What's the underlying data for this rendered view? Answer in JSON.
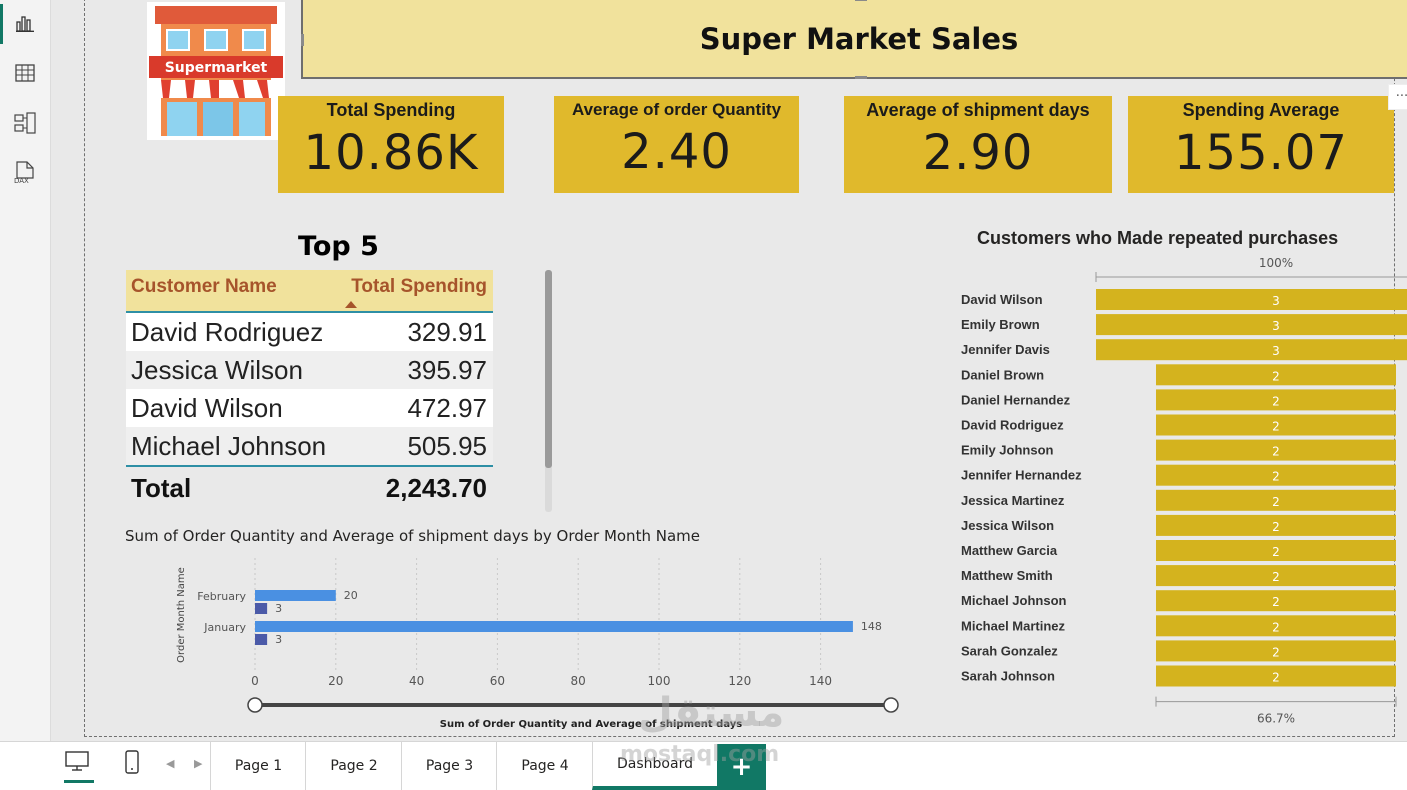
{
  "left_rail": {
    "icons": [
      "report-view-icon",
      "table-view-icon",
      "model-view-icon",
      "dax-query-icon"
    ],
    "dax_label": "DAX"
  },
  "logo": {
    "text": "Supermarket"
  },
  "title": "Super Market Sales",
  "kpis": [
    {
      "label": "Total Spending",
      "value": "10.86K"
    },
    {
      "label": "Average of order Quantity",
      "value": "2.40"
    },
    {
      "label": "Average of shipment days",
      "value": "2.90"
    },
    {
      "label": "Spending Average",
      "value": "155.07"
    }
  ],
  "more_options": "···",
  "top5": {
    "title": "Top 5",
    "headers": {
      "name": "Customer Name",
      "value": "Total Spending"
    },
    "rows": [
      {
        "name": "David Rodriguez",
        "value": "329.91"
      },
      {
        "name": "Jessica Wilson",
        "value": "395.97"
      },
      {
        "name": "David Wilson",
        "value": "472.97"
      },
      {
        "name": "Michael Johnson",
        "value": "505.95"
      }
    ],
    "total": {
      "label": "Total",
      "value": "2,243.70"
    }
  },
  "chart_data": [
    {
      "type": "bar",
      "orientation": "horizontal",
      "title": "Sum of Order Quantity and Average of shipment days by Order Month Name",
      "ylabel": "Order Month Name",
      "xlabel": "Sum of Order Quantity and Average of shipment days",
      "categories": [
        "February",
        "January"
      ],
      "series": [
        {
          "values": [
            20,
            148
          ],
          "color": "#4a90e2"
        },
        {
          "values": [
            3,
            3
          ],
          "color": "#4b5aa8"
        }
      ],
      "xticks": [
        0,
        20,
        40,
        60,
        80,
        100,
        120,
        140
      ],
      "xlim": [
        0,
        150
      ],
      "grid": true
    },
    {
      "type": "funnel",
      "title": "Customers who Made repeated purchases",
      "top_label": "100%",
      "bottom_label": "66.7%",
      "color": "#d4b31e",
      "categories": [
        "David Wilson",
        "Emily Brown",
        "Jennifer Davis",
        "Daniel Brown",
        "Daniel Hernandez",
        "David Rodriguez",
        "Emily Johnson",
        "Jennifer Hernandez",
        "Jessica Martinez",
        "Jessica Wilson",
        "Matthew Garcia",
        "Matthew Smith",
        "Michael Johnson",
        "Michael Martinez",
        "Sarah Gonzalez",
        "Sarah Johnson"
      ],
      "values": [
        3,
        3,
        3,
        2,
        2,
        2,
        2,
        2,
        2,
        2,
        2,
        2,
        2,
        2,
        2,
        2
      ]
    }
  ],
  "tabs": {
    "items": [
      "Page 1",
      "Page 2",
      "Page 3",
      "Page 4",
      "Dashboard"
    ],
    "active": "Dashboard",
    "add_label": "+"
  },
  "watermark": {
    "line1": "مستقل",
    "line2": "mostaql.com"
  }
}
